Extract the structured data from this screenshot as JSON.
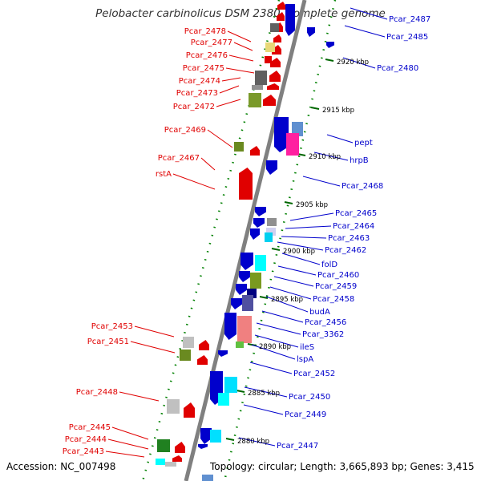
{
  "title": "Pelobacter carbinolicus DSM 2380, complete genome",
  "footer": {
    "accession": "Accession: NC_007498",
    "topology": "Topology: circular; Length: 3,665,893 bp; Genes: 3,415"
  },
  "colors": {
    "forward": "#e00000",
    "reverse": "#0000cc",
    "axis": "#808080",
    "ticks": "#008000"
  },
  "scale": [
    {
      "label": "2920 kbp"
    },
    {
      "label": "2915 kbp"
    },
    {
      "label": "2910 kbp"
    },
    {
      "label": "2905 kbp"
    },
    {
      "label": "2900 kbp"
    },
    {
      "label": "2895 kbp"
    },
    {
      "label": "2890 kbp"
    },
    {
      "label": "2885 kbp"
    },
    {
      "label": "2880 kbp"
    }
  ],
  "left_labels": [
    "Pcar_2478",
    "Pcar_2477",
    "Pcar_2476",
    "Pcar_2475",
    "Pcar_2474",
    "Pcar_2473",
    "Pcar_2472",
    "Pcar_2469",
    "Pcar_2467",
    "rstA",
    "Pcar_2453",
    "Pcar_2451",
    "Pcar_2448",
    "Pcar_2445",
    "Pcar_2444",
    "Pcar_2443"
  ],
  "right_labels": [
    "Pcar_2487",
    "Pcar_2485",
    "Pcar_2480",
    "pept",
    "hrpB",
    "Pcar_2468",
    "Pcar_2465",
    "Pcar_2464",
    "Pcar_2463",
    "Pcar_2462",
    "folD",
    "Pcar_2460",
    "Pcar_2459",
    "Pcar_2458",
    "budA",
    "Pcar_2456",
    "Pcar_3362",
    "ileS",
    "lspA",
    "Pcar_2452",
    "Pcar_2450",
    "Pcar_2449",
    "Pcar_2447"
  ]
}
